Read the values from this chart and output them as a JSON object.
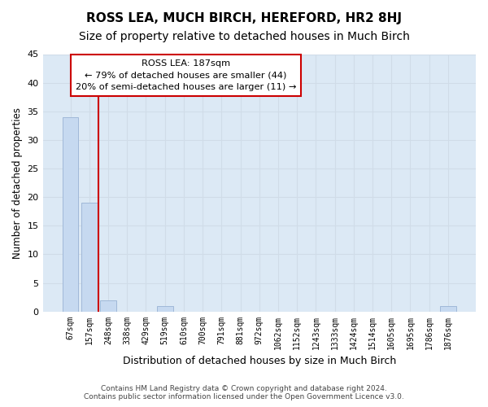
{
  "title": "ROSS LEA, MUCH BIRCH, HEREFORD, HR2 8HJ",
  "subtitle": "Size of property relative to detached houses in Much Birch",
  "xlabel": "Distribution of detached houses by size in Much Birch",
  "ylabel": "Number of detached properties",
  "bin_labels": [
    "67sqm",
    "157sqm",
    "248sqm",
    "338sqm",
    "429sqm",
    "519sqm",
    "610sqm",
    "700sqm",
    "791sqm",
    "881sqm",
    "972sqm",
    "1062sqm",
    "1152sqm",
    "1243sqm",
    "1333sqm",
    "1424sqm",
    "1514sqm",
    "1605sqm",
    "1695sqm",
    "1786sqm",
    "1876sqm"
  ],
  "bar_values": [
    34,
    19,
    2,
    0,
    0,
    1,
    0,
    0,
    0,
    0,
    0,
    0,
    0,
    0,
    0,
    0,
    0,
    0,
    0,
    0,
    1
  ],
  "bar_color": "#c6d9f0",
  "bar_edge_color": "#a0b8d8",
  "vline_x_index": 1.5,
  "vline_color": "#cc0000",
  "ylim": [
    0,
    45
  ],
  "yticks": [
    0,
    5,
    10,
    15,
    20,
    25,
    30,
    35,
    40,
    45
  ],
  "annotation_line1": "ROSS LEA: 187sqm",
  "annotation_line2": "← 79% of detached houses are smaller (44)",
  "annotation_line3": "20% of semi-detached houses are larger (11) →",
  "annotation_box_color": "#cc0000",
  "annotation_bg": "#ffffff",
  "footer_line1": "Contains HM Land Registry data © Crown copyright and database right 2024.",
  "footer_line2": "Contains public sector information licensed under the Open Government Licence v3.0.",
  "grid_color": "#d0dce8",
  "background_color": "#dce9f5",
  "title_fontsize": 11,
  "subtitle_fontsize": 10
}
